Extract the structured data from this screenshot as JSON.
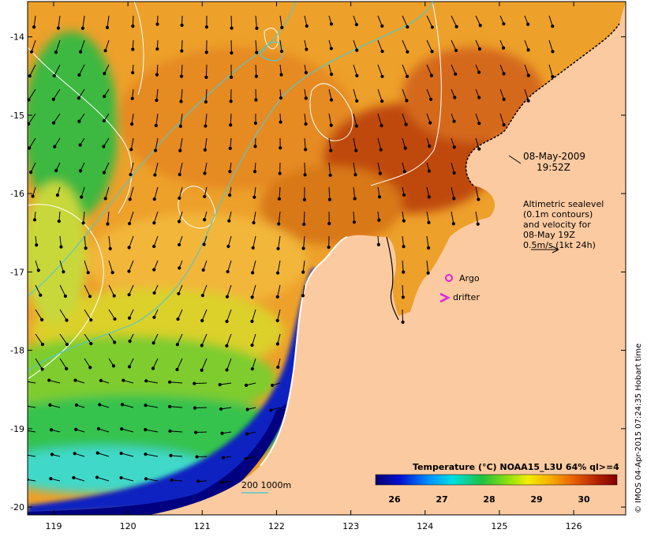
{
  "map": {
    "date_label": "08-May-2009",
    "time_label": "19:52Z",
    "altimetry_lines": [
      "Altimetric sealevel",
      "(0.1m contours)",
      "and velocity for",
      "08-May 19Z",
      "0.5m/s (1kt 24h)"
    ],
    "argo_label": "Argo",
    "drifter_label": "drifter",
    "depth_label": "200  1000m",
    "credit": "© IMOS 04-Apr-2015 07:24:35 Hobart time",
    "x_ticks": [
      "119",
      "120",
      "121",
      "122",
      "123",
      "124",
      "125",
      "126"
    ],
    "y_ticks": [
      "-14",
      "-15",
      "-16",
      "-17",
      "-18",
      "-19",
      "-20"
    ],
    "x_tick_values": [
      119,
      120,
      121,
      122,
      123,
      124,
      125,
      126
    ],
    "y_tick_values": [
      -14,
      -15,
      -16,
      -17,
      -18,
      -19,
      -20
    ],
    "lon_range": [
      118.65,
      126.7
    ],
    "lat_range": [
      -20.1,
      -13.55
    ]
  },
  "legend": {
    "title": "Temperature (°C) NOAA15_L3U 64% ql>=4",
    "ticks": [
      "26",
      "27",
      "28",
      "29",
      "30"
    ],
    "tick_values": [
      26,
      27,
      28,
      29,
      30
    ],
    "range": [
      25.6,
      30.7
    ]
  },
  "colors": {
    "land": "#fccaa0",
    "contour": "#ffffff",
    "isobath": "#55c8c8",
    "marker": "#e020e0",
    "arrow": "#000000"
  }
}
